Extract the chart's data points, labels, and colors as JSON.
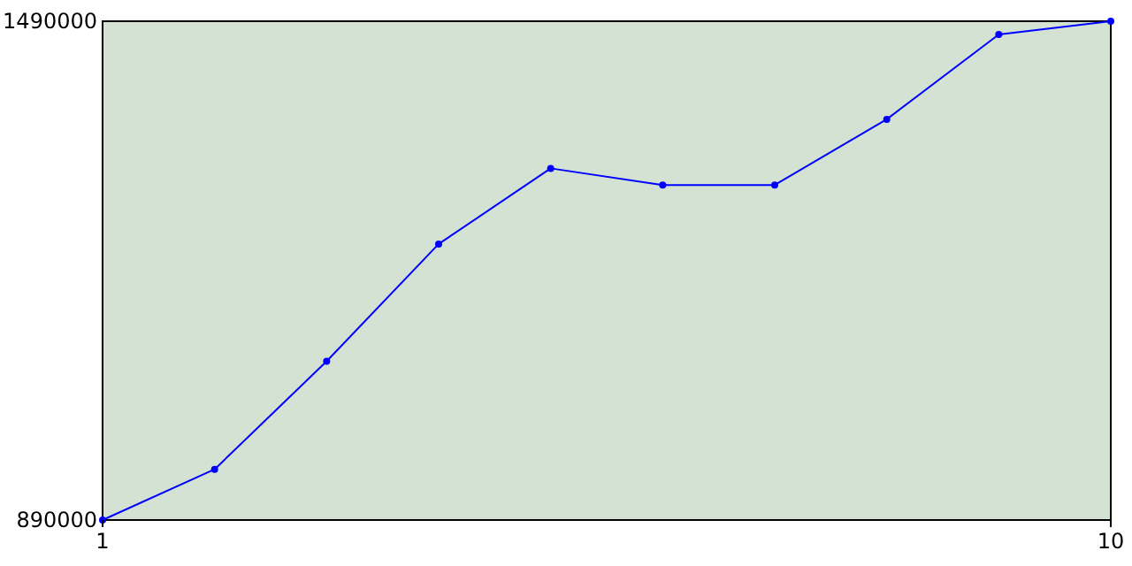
{
  "chart_data": {
    "type": "line",
    "x": [
      1,
      2,
      3,
      4,
      5,
      6,
      7,
      8,
      9,
      10
    ],
    "series": [
      {
        "color": "#0000ff",
        "values": [
          890000,
          951000,
          1081000,
          1222000,
          1313000,
          1293000,
          1293000,
          1372000,
          1474000,
          1490000
        ]
      }
    ],
    "xlim": [
      1,
      10
    ],
    "xticks": [
      1,
      10
    ],
    "ylim": [
      890000,
      1490000
    ],
    "yticks": [
      890000,
      1490000
    ],
    "grid": false,
    "marker": "circle",
    "line_style": "solid"
  }
}
